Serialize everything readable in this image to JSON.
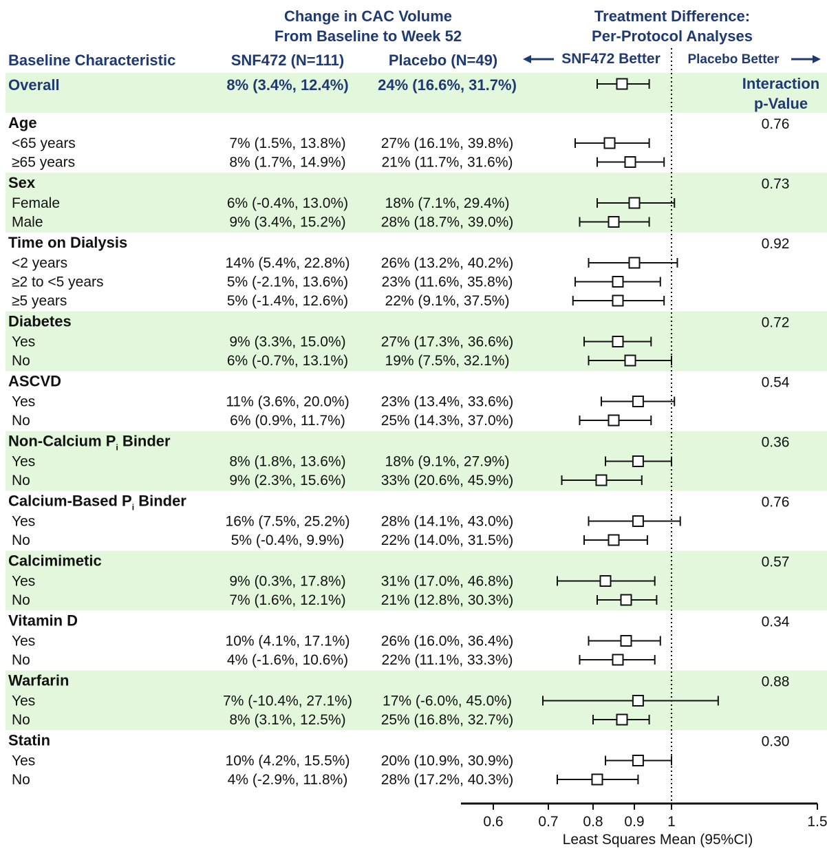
{
  "colors": {
    "header_blue": "#1F3A73",
    "band_green": "#E3F7DD",
    "text": "#111111",
    "marker": "#111111"
  },
  "header": {
    "change_title_1": "Change in CAC Volume",
    "change_title_2": "From Baseline to Week 52",
    "treat_title_1": "Treatment Difference:",
    "treat_title_2": "Per-Protocol Analyses",
    "col_characteristic": "Baseline Characteristic",
    "col_snf472": "SNF472 (N=111)",
    "col_placebo": "Placebo (N=49)",
    "snf_better": "SNF472 Better",
    "placebo_better": "Placebo Better",
    "interaction_1": "Interaction",
    "interaction_2": "p-Value"
  },
  "chart_data": {
    "type": "forest",
    "xlabel": "Least Squares Mean (95%CI)",
    "xlim": [
      0.48,
      1.5
    ],
    "reference_line": 1,
    "ticks": [
      "0.6",
      "0.7",
      "0.8",
      "0.9",
      "1",
      "1.5"
    ],
    "tick_values": [
      0.6,
      0.7,
      0.8,
      0.9,
      1,
      1.5
    ],
    "groups": [
      {
        "name": "Overall",
        "overall": true,
        "p": "",
        "shaded": true,
        "rows": [
          {
            "label": "",
            "snf": "8% (3.4%, 12.4%)",
            "placebo": "24% (16.6%, 31.7%)",
            "est": 0.87,
            "lo": 0.81,
            "hi": 0.94
          }
        ]
      },
      {
        "name": "Age",
        "p": "0.76",
        "shaded": false,
        "rows": [
          {
            "label": "<65 years",
            "snf": "7% (1.5%, 13.8%)",
            "placebo": "27% (16.1%, 39.8%)",
            "est": 0.84,
            "lo": 0.76,
            "hi": 0.94
          },
          {
            "label": "≥65 years",
            "snf": "8% (1.7%, 14.9%)",
            "placebo": "21% (11.7%, 31.6%)",
            "est": 0.89,
            "lo": 0.81,
            "hi": 0.98
          }
        ]
      },
      {
        "name": "Sex",
        "p": "0.73",
        "shaded": true,
        "rows": [
          {
            "label": "Female",
            "snf": "6% (-0.4%, 13.0%)",
            "placebo": "18% (7.1%, 29.4%)",
            "est": 0.9,
            "lo": 0.81,
            "hi": 1.01
          },
          {
            "label": "Male",
            "snf": "9% (3.4%, 15.2%)",
            "placebo": "28% (18.7%, 39.0%)",
            "est": 0.85,
            "lo": 0.77,
            "hi": 0.94
          }
        ]
      },
      {
        "name": "Time on Dialysis",
        "p": "0.92",
        "shaded": false,
        "rows": [
          {
            "label": "<2 years",
            "snf": "14% (5.4%, 22.8%)",
            "placebo": "26% (13.2%, 40.2%)",
            "est": 0.9,
            "lo": 0.79,
            "hi": 1.02
          },
          {
            "label": "≥2 to <5 years",
            "snf": "5% (-2.1%, 13.6%)",
            "placebo": "23% (11.6%, 35.8%)",
            "est": 0.86,
            "lo": 0.76,
            "hi": 0.97
          },
          {
            "label": "≥5 years",
            "snf": "5% (-1.4%, 12.6%)",
            "placebo": "22% (9.1%, 37.5%)",
            "est": 0.86,
            "lo": 0.755,
            "hi": 0.98
          }
        ]
      },
      {
        "name": "Diabetes",
        "p": "0.72",
        "shaded": true,
        "rows": [
          {
            "label": "Yes",
            "snf": "9% (3.3%, 15.0%)",
            "placebo": "27% (17.3%, 36.6%)",
            "est": 0.86,
            "lo": 0.78,
            "hi": 0.945
          },
          {
            "label": "No",
            "snf": "6% (-0.7%, 13.1%)",
            "placebo": "19% (7.5%, 32.1%)",
            "est": 0.89,
            "lo": 0.79,
            "hi": 1.0
          }
        ]
      },
      {
        "name": "ASCVD",
        "p": "0.54",
        "shaded": false,
        "rows": [
          {
            "label": "Yes",
            "snf": "11% (3.6%, 20.0%)",
            "placebo": "23% (13.4%, 33.6%)",
            "est": 0.91,
            "lo": 0.82,
            "hi": 1.01
          },
          {
            "label": "No",
            "snf": "6% (0.9%, 11.7%)",
            "placebo": "25% (14.3%, 37.0%)",
            "est": 0.85,
            "lo": 0.77,
            "hi": 0.945
          }
        ]
      },
      {
        "name": "Non-Calcium P",
        "sub": "i",
        "name_tail": " Binder",
        "p": "0.36",
        "shaded": true,
        "rows": [
          {
            "label": "Yes",
            "snf": "8% (1.8%, 13.6%)",
            "placebo": "18% (9.1%, 27.9%)",
            "est": 0.91,
            "lo": 0.83,
            "hi": 1.0
          },
          {
            "label": "No",
            "snf": "9% (2.3%, 15.6%)",
            "placebo": "33% (20.6%, 45.9%)",
            "est": 0.82,
            "lo": 0.73,
            "hi": 0.92
          }
        ]
      },
      {
        "name": "Calcium-Based P",
        "sub": "i",
        "name_tail": " Binder",
        "p": "0.76",
        "shaded": false,
        "rows": [
          {
            "label": "Yes",
            "snf": "16% (7.5%, 25.2%)",
            "placebo": "28% (14.1%, 43.0%)",
            "est": 0.91,
            "lo": 0.79,
            "hi": 1.03
          },
          {
            "label": "No",
            "snf": "5% (-0.4%, 9.9%)",
            "placebo": "22% (14.0%, 31.5%)",
            "est": 0.85,
            "lo": 0.78,
            "hi": 0.935
          }
        ]
      },
      {
        "name": "Calcimimetic",
        "p": "0.57",
        "shaded": true,
        "rows": [
          {
            "label": "Yes",
            "snf": "9% (0.3%, 17.8%)",
            "placebo": "31% (17.0%, 46.8%)",
            "est": 0.83,
            "lo": 0.72,
            "hi": 0.955
          },
          {
            "label": "No",
            "snf": "7% (1.6%, 12.1%)",
            "placebo": "21% (12.8%, 30.3%)",
            "est": 0.88,
            "lo": 0.81,
            "hi": 0.96
          }
        ]
      },
      {
        "name": "Vitamin D",
        "p": "0.34",
        "shaded": false,
        "rows": [
          {
            "label": "Yes",
            "snf": "10% (4.1%, 17.1%)",
            "placebo": "26% (16.0%, 36.4%)",
            "est": 0.88,
            "lo": 0.79,
            "hi": 0.97
          },
          {
            "label": "No",
            "snf": "4% (-1.6%, 10.6%)",
            "placebo": "22% (11.1%, 33.3%)",
            "est": 0.86,
            "lo": 0.77,
            "hi": 0.955
          }
        ]
      },
      {
        "name": "Warfarin",
        "p": "0.88",
        "shaded": true,
        "rows": [
          {
            "label": "Yes",
            "snf": "7% (-10.4%, 27.1%)",
            "placebo": "17% (-6.0%, 45.0%)",
            "est": 0.91,
            "lo": 0.69,
            "hi": 1.16
          },
          {
            "label": "No",
            "snf": "8% (3.1%, 12.5%)",
            "placebo": "25% (16.8%, 32.7%)",
            "est": 0.87,
            "lo": 0.8,
            "hi": 0.94
          }
        ]
      },
      {
        "name": "Statin",
        "p": "0.30",
        "shaded": false,
        "rows": [
          {
            "label": "Yes",
            "snf": "10% (4.2%, 15.5%)",
            "placebo": "20% (10.9%, 30.9%)",
            "est": 0.91,
            "lo": 0.83,
            "hi": 1.0
          },
          {
            "label": "No",
            "snf": "4% (-2.9%, 11.8%)",
            "placebo": "28% (17.2%, 40.3%)",
            "est": 0.81,
            "lo": 0.72,
            "hi": 0.91
          }
        ]
      }
    ]
  }
}
